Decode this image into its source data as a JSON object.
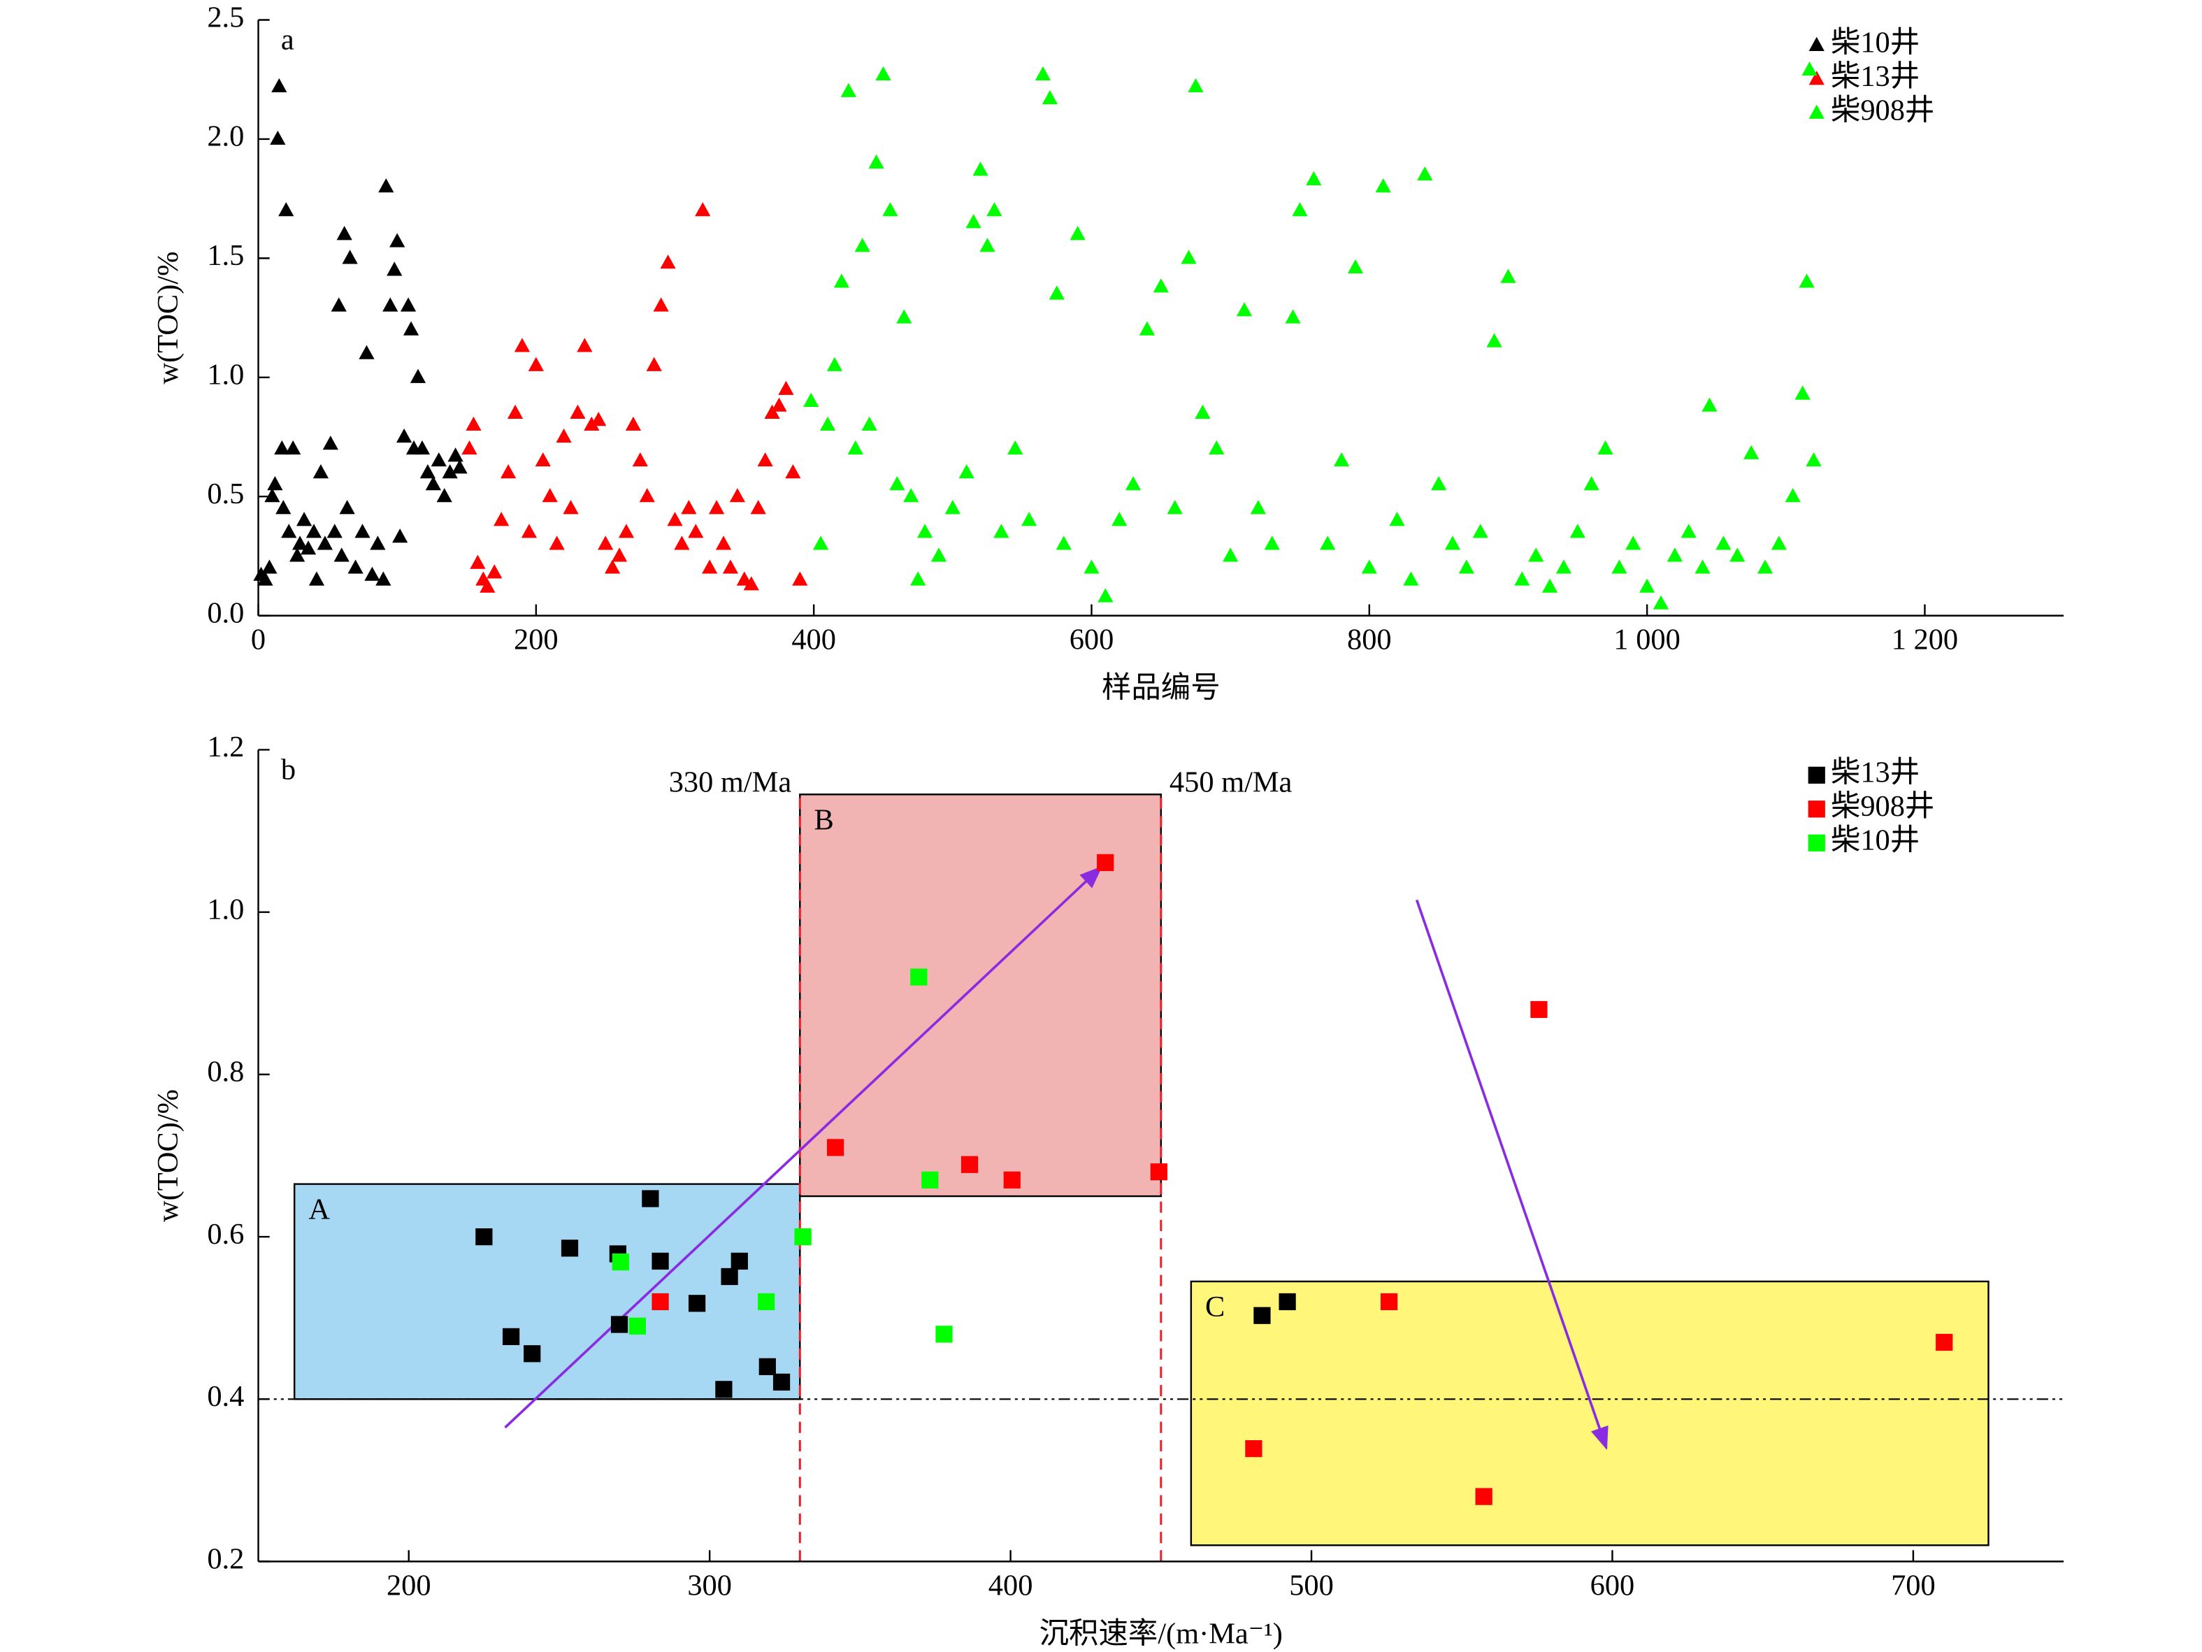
{
  "chart_data": [
    {
      "type": "scatter",
      "marker": "triangle",
      "panel_label": "a",
      "x_label": "样品编号",
      "y_label": "w(TOC)/%",
      "xlim": [
        0,
        1300
      ],
      "ylim": [
        0,
        2.5
      ],
      "xticks": [
        0,
        200,
        400,
        600,
        800,
        {
          "value": 1000,
          "label": "1 000"
        },
        {
          "value": 1200,
          "label": "1 200"
        }
      ],
      "yticks": [
        {
          "value": 0,
          "label": "0.0"
        },
        0.5,
        {
          "value": 1,
          "label": "1.0"
        },
        1.5,
        {
          "value": 2,
          "label": "2.0"
        },
        2.5
      ],
      "legend": "upper right",
      "series": [
        {
          "name": "柴10井",
          "color": "#000000",
          "x": [
            2,
            5,
            8,
            10,
            12,
            14,
            15,
            17,
            18,
            20,
            22,
            25,
            28,
            30,
            33,
            36,
            40,
            42,
            45,
            48,
            52,
            55,
            58,
            60,
            62,
            64,
            66,
            70,
            75,
            78,
            82,
            86,
            90,
            92,
            95,
            98,
            100,
            102,
            105,
            108,
            110,
            112,
            115,
            118,
            122,
            126,
            130,
            134,
            138,
            142,
            145
          ],
          "values": [
            0.17,
            0.15,
            0.2,
            0.5,
            0.55,
            2.0,
            2.22,
            0.7,
            0.45,
            1.7,
            0.35,
            0.7,
            0.25,
            0.3,
            0.4,
            0.28,
            0.35,
            0.15,
            0.6,
            0.3,
            0.72,
            0.35,
            1.3,
            0.25,
            1.6,
            0.45,
            1.5,
            0.2,
            0.35,
            1.1,
            0.17,
            0.3,
            0.15,
            1.8,
            1.3,
            1.45,
            1.57,
            0.33,
            0.75,
            1.3,
            1.2,
            0.7,
            1.0,
            0.7,
            0.6,
            0.55,
            0.65,
            0.5,
            0.6,
            0.67,
            0.62
          ]
        },
        {
          "name": "柴13井",
          "color": "#ff0000",
          "x": [
            152,
            155,
            158,
            162,
            165,
            170,
            175,
            180,
            185,
            190,
            195,
            200,
            205,
            210,
            215,
            220,
            225,
            230,
            235,
            240,
            245,
            250,
            255,
            260,
            265,
            270,
            275,
            280,
            285,
            290,
            295,
            300,
            305,
            310,
            315,
            320,
            325,
            330,
            335,
            340,
            345,
            350,
            355,
            360,
            365,
            370,
            375,
            380,
            385,
            390
          ],
          "values": [
            0.7,
            0.8,
            0.22,
            0.15,
            0.12,
            0.18,
            0.4,
            0.6,
            0.85,
            1.13,
            0.35,
            1.05,
            0.65,
            0.5,
            0.3,
            0.75,
            0.45,
            0.85,
            1.13,
            0.8,
            0.82,
            0.3,
            0.2,
            0.25,
            0.35,
            0.8,
            0.65,
            0.5,
            1.05,
            1.3,
            1.48,
            0.4,
            0.3,
            0.45,
            0.35,
            1.7,
            0.2,
            0.45,
            0.3,
            0.2,
            0.5,
            0.15,
            0.13,
            0.45,
            0.65,
            0.85,
            0.88,
            0.95,
            0.6,
            0.15
          ]
        },
        {
          "name": "柴908井",
          "color": "#00ff00",
          "x": [
            398,
            405,
            410,
            415,
            420,
            425,
            430,
            435,
            440,
            445,
            450,
            455,
            460,
            465,
            470,
            475,
            480,
            490,
            500,
            510,
            515,
            520,
            525,
            530,
            535,
            545,
            555,
            565,
            570,
            575,
            580,
            590,
            600,
            610,
            620,
            630,
            640,
            650,
            660,
            670,
            675,
            680,
            690,
            700,
            710,
            720,
            730,
            745,
            750,
            760,
            770,
            780,
            790,
            800,
            810,
            820,
            830,
            840,
            850,
            860,
            870,
            880,
            890,
            900,
            910,
            920,
            930,
            940,
            950,
            960,
            970,
            980,
            990,
            1000,
            1010,
            1020,
            1030,
            1040,
            1045,
            1055,
            1065,
            1075,
            1085,
            1095,
            1105,
            1112,
            1115,
            1117,
            1120
          ],
          "values": [
            0.9,
            0.3,
            0.8,
            1.05,
            1.4,
            2.2,
            0.7,
            1.55,
            0.8,
            1.9,
            2.27,
            1.7,
            0.55,
            1.25,
            0.5,
            0.15,
            0.35,
            0.25,
            0.45,
            0.6,
            1.65,
            1.87,
            1.55,
            1.7,
            0.35,
            0.7,
            0.4,
            2.27,
            2.17,
            1.35,
            0.3,
            1.6,
            0.2,
            0.08,
            0.4,
            0.55,
            1.2,
            1.38,
            0.45,
            1.5,
            2.22,
            0.85,
            0.7,
            0.25,
            1.28,
            0.45,
            0.3,
            1.25,
            1.7,
            1.83,
            0.3,
            0.65,
            1.46,
            0.2,
            1.8,
            0.4,
            0.15,
            1.85,
            0.55,
            0.3,
            0.2,
            0.35,
            1.15,
            1.42,
            0.15,
            0.25,
            0.12,
            0.2,
            0.35,
            0.55,
            0.7,
            0.2,
            0.3,
            0.12,
            0.05,
            0.25,
            0.35,
            0.2,
            0.88,
            0.3,
            0.25,
            0.68,
            0.2,
            0.3,
            0.5,
            0.93,
            1.4,
            2.29,
            0.65
          ]
        }
      ]
    },
    {
      "type": "scatter",
      "marker": "square",
      "panel_label": "b",
      "x_label": "沉积速率/(m·Ma⁻¹)",
      "y_label": "w(TOC)/%",
      "xlim": [
        150,
        750
      ],
      "ylim": [
        0.2,
        1.2
      ],
      "xticks": [
        200,
        300,
        400,
        500,
        600,
        700
      ],
      "yticks": [
        0.2,
        0.4,
        0.6,
        0.8,
        {
          "value": 1,
          "label": "1.0"
        },
        1.2
      ],
      "legend": "upper right",
      "regions": [
        {
          "label": "A",
          "xlim": [
            162,
            330
          ],
          "ylim": [
            0.4,
            0.665
          ],
          "color": "#a6d8f3"
        },
        {
          "label": "B",
          "xlim": [
            330,
            450
          ],
          "ylim": [
            0.65,
            1.145
          ],
          "color": "#f2b3b3"
        },
        {
          "label": "C",
          "xlim": [
            460,
            725
          ],
          "ylim": [
            0.22,
            0.545
          ],
          "color": "#fff67a"
        }
      ],
      "vlines": [
        {
          "value": 330,
          "label": "330 m/Ma",
          "color": "#e8202a"
        },
        {
          "value": 450,
          "label": "450 m/Ma",
          "color": "#e8202a"
        }
      ],
      "hline": 0.4,
      "arrows": [
        {
          "from": [
            232,
            0.365
          ],
          "to": [
            430,
            1.055
          ],
          "color": "#8a2be2"
        },
        {
          "from": [
            535,
            1.015
          ],
          "to": [
            598,
            0.34
          ],
          "color": "#8a2be2"
        }
      ],
      "series": [
        {
          "name": "柴13井",
          "color": "#000000",
          "x": [
            225,
            234,
            241,
            253.5,
            269.5,
            270,
            280.3,
            283.6,
            295.8,
            306.6,
            309.9,
            304.7,
            319.2,
            323.9,
            483.6,
            492
          ],
          "values": [
            0.6,
            0.477,
            0.456,
            0.586,
            0.579,
            0.492,
            0.647,
            0.57,
            0.518,
            0.551,
            0.57,
            0.412,
            0.44,
            0.421,
            0.503,
            0.52
          ]
        },
        {
          "name": "柴908井",
          "color": "#ff0000",
          "x": [
            283.6,
            341.8,
            386.4,
            400.5,
            431.5,
            449.3,
            480.8,
            525.8,
            557.3,
            575.6,
            710.3
          ],
          "values": [
            0.52,
            0.71,
            0.689,
            0.67,
            1.061,
            0.68,
            0.339,
            0.52,
            0.28,
            0.88,
            0.47
          ]
        },
        {
          "name": "柴10井",
          "color": "#00ff00",
          "x": [
            270.4,
            276,
            318.8,
            331,
            369.5,
            373.2,
            377.9
          ],
          "values": [
            0.569,
            0.49,
            0.52,
            0.6,
            0.92,
            0.67,
            0.48
          ]
        }
      ]
    }
  ]
}
